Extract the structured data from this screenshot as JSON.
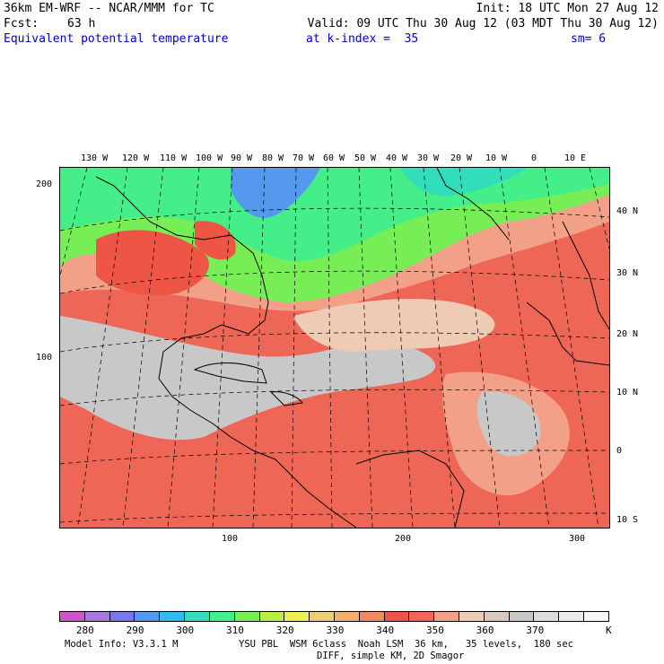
{
  "header": {
    "model_title": "36km EM-WRF -- NCAR/MMM for TC",
    "init": "Init: 18 UTC Mon 27 Aug 12",
    "fcst_label": "Fcst:",
    "fcst_value": "63 h",
    "valid": "Valid: 09 UTC Thu 30 Aug 12 (03 MDT Thu 30 Aug 12)",
    "field_name": "Equivalent potential temperature",
    "level": "at k-index =  35",
    "smoothing": "sm= 6"
  },
  "map": {
    "top_lon_labels": [
      "130 W",
      "120 W",
      "110 W",
      "100 W",
      "90 W",
      "80 W",
      "70 W",
      "60 W",
      "50 W",
      "40 W",
      "30 W",
      "20 W",
      "10 W",
      "0",
      "10 E"
    ],
    "right_lat_labels": [
      "40 N",
      "30 N",
      "20 N",
      "10 N",
      "0",
      "10 S"
    ],
    "left_grid_labels": [
      "200",
      "100"
    ],
    "bottom_grid_labels": [
      "100",
      "200",
      "300"
    ]
  },
  "colorbar": {
    "colors": [
      "#cc55cc",
      "#aa77dd",
      "#7777ee",
      "#5599ee",
      "#33bbee",
      "#33ddbb",
      "#44ee88",
      "#77ee55",
      "#bbee44",
      "#eeee55",
      "#eecc77",
      "#f5b070",
      "#f08b5b",
      "#ee5544",
      "#ee6655",
      "#f2a088",
      "#efcab5",
      "#d8c8c0",
      "#c8c8c8",
      "#dcdcdc",
      "#ececec",
      "#f8f8f8"
    ],
    "labels": [
      "280",
      "290",
      "300",
      "310",
      "320",
      "330",
      "340",
      "350",
      "360",
      "370"
    ],
    "unit": "K"
  },
  "footer": {
    "model_info": "Model Info: V3.3.1 M",
    "physics": "YSU PBL  WSM 6class  Noah LSM  36 km,   35 levels,  180 sec",
    "diff": "DIFF, simple KM, 2D Smagor"
  }
}
